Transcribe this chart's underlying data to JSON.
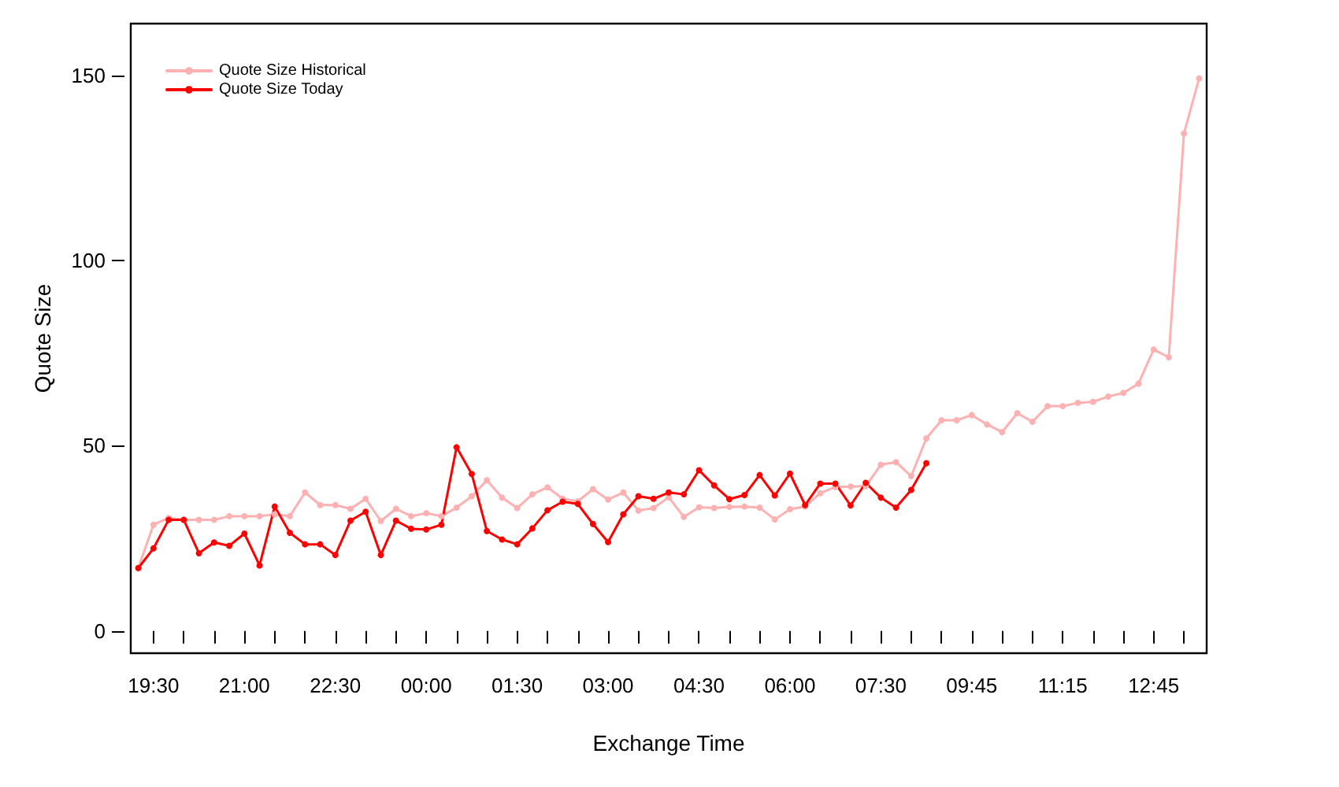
{
  "chart_data": {
    "type": "line",
    "xlabel": "Exchange Time",
    "ylabel": "Quote Size",
    "categories": [
      null,
      "19:30",
      null,
      null,
      null,
      null,
      null,
      "21:00",
      null,
      null,
      null,
      null,
      null,
      "22:30",
      null,
      null,
      null,
      null,
      null,
      "00:00",
      null,
      null,
      null,
      null,
      null,
      "01:30",
      null,
      null,
      null,
      null,
      null,
      "03:00",
      null,
      null,
      null,
      null,
      null,
      "04:30",
      null,
      null,
      null,
      null,
      null,
      "06:00",
      null,
      null,
      null,
      null,
      null,
      "07:30",
      null,
      null,
      null,
      null,
      null,
      "09:45",
      null,
      null,
      null,
      null,
      null,
      "11:15",
      null,
      null,
      null,
      null,
      null,
      "12:45",
      null,
      null,
      null
    ],
    "series": [
      {
        "name": "Quote Size Historical",
        "color": "#ffb0b0",
        "values": [
          17,
          28.7,
          30.5,
          30,
          30,
          30,
          31,
          31,
          31,
          31.5,
          31,
          37.4,
          34,
          34,
          33,
          35.7,
          29.7,
          33,
          31,
          31.8,
          31,
          33.3,
          36.4,
          40.7,
          36,
          33.2,
          36.9,
          38.8,
          35.7,
          35,
          38.3,
          35.5,
          37.4,
          32.5,
          33.2,
          36.1,
          30.8,
          33.4,
          33.2,
          33.5,
          33.6,
          33.3,
          30.1,
          32.9,
          33.6,
          37.2,
          38.9,
          39,
          39.1,
          44.9,
          45.6,
          41.8,
          52,
          56.9,
          56.9,
          58.3,
          55.8,
          53.7,
          58.8,
          56.5,
          60.7,
          60.7,
          61.6,
          61.9,
          63.3,
          64.3,
          66.8,
          76,
          73.9,
          134.3,
          149.2
        ]
      },
      {
        "name": "Quote Size Today",
        "color": "#ff0000",
        "values": [
          17,
          22.3,
          30,
          30,
          21,
          23.9,
          23,
          26.3,
          17.7,
          33.6,
          26.5,
          23.4,
          23.4,
          20.5,
          29.8,
          32.2,
          20.5,
          29.8,
          27.6,
          27.4,
          28.7,
          49.6,
          42.4,
          27,
          24.7,
          23.4,
          27.7,
          32.6,
          34.9,
          34.3,
          28.9,
          24,
          31.5,
          36.4,
          35.7,
          37.4,
          36.9,
          43.4,
          39.3,
          35.6,
          36.7,
          42.1,
          36.6,
          42.5,
          34,
          39.8,
          39.8,
          33.9,
          40,
          36,
          33.3,
          38.1,
          45.3,
          null,
          null,
          null,
          null,
          null,
          null,
          null,
          null,
          null,
          null,
          null,
          null,
          null,
          null,
          null,
          null,
          null,
          null
        ]
      }
    ],
    "ylim": [
      -6,
      164
    ],
    "yticks": [
      0,
      50,
      100,
      150
    ],
    "legend": "top left",
    "marker": "circle"
  }
}
